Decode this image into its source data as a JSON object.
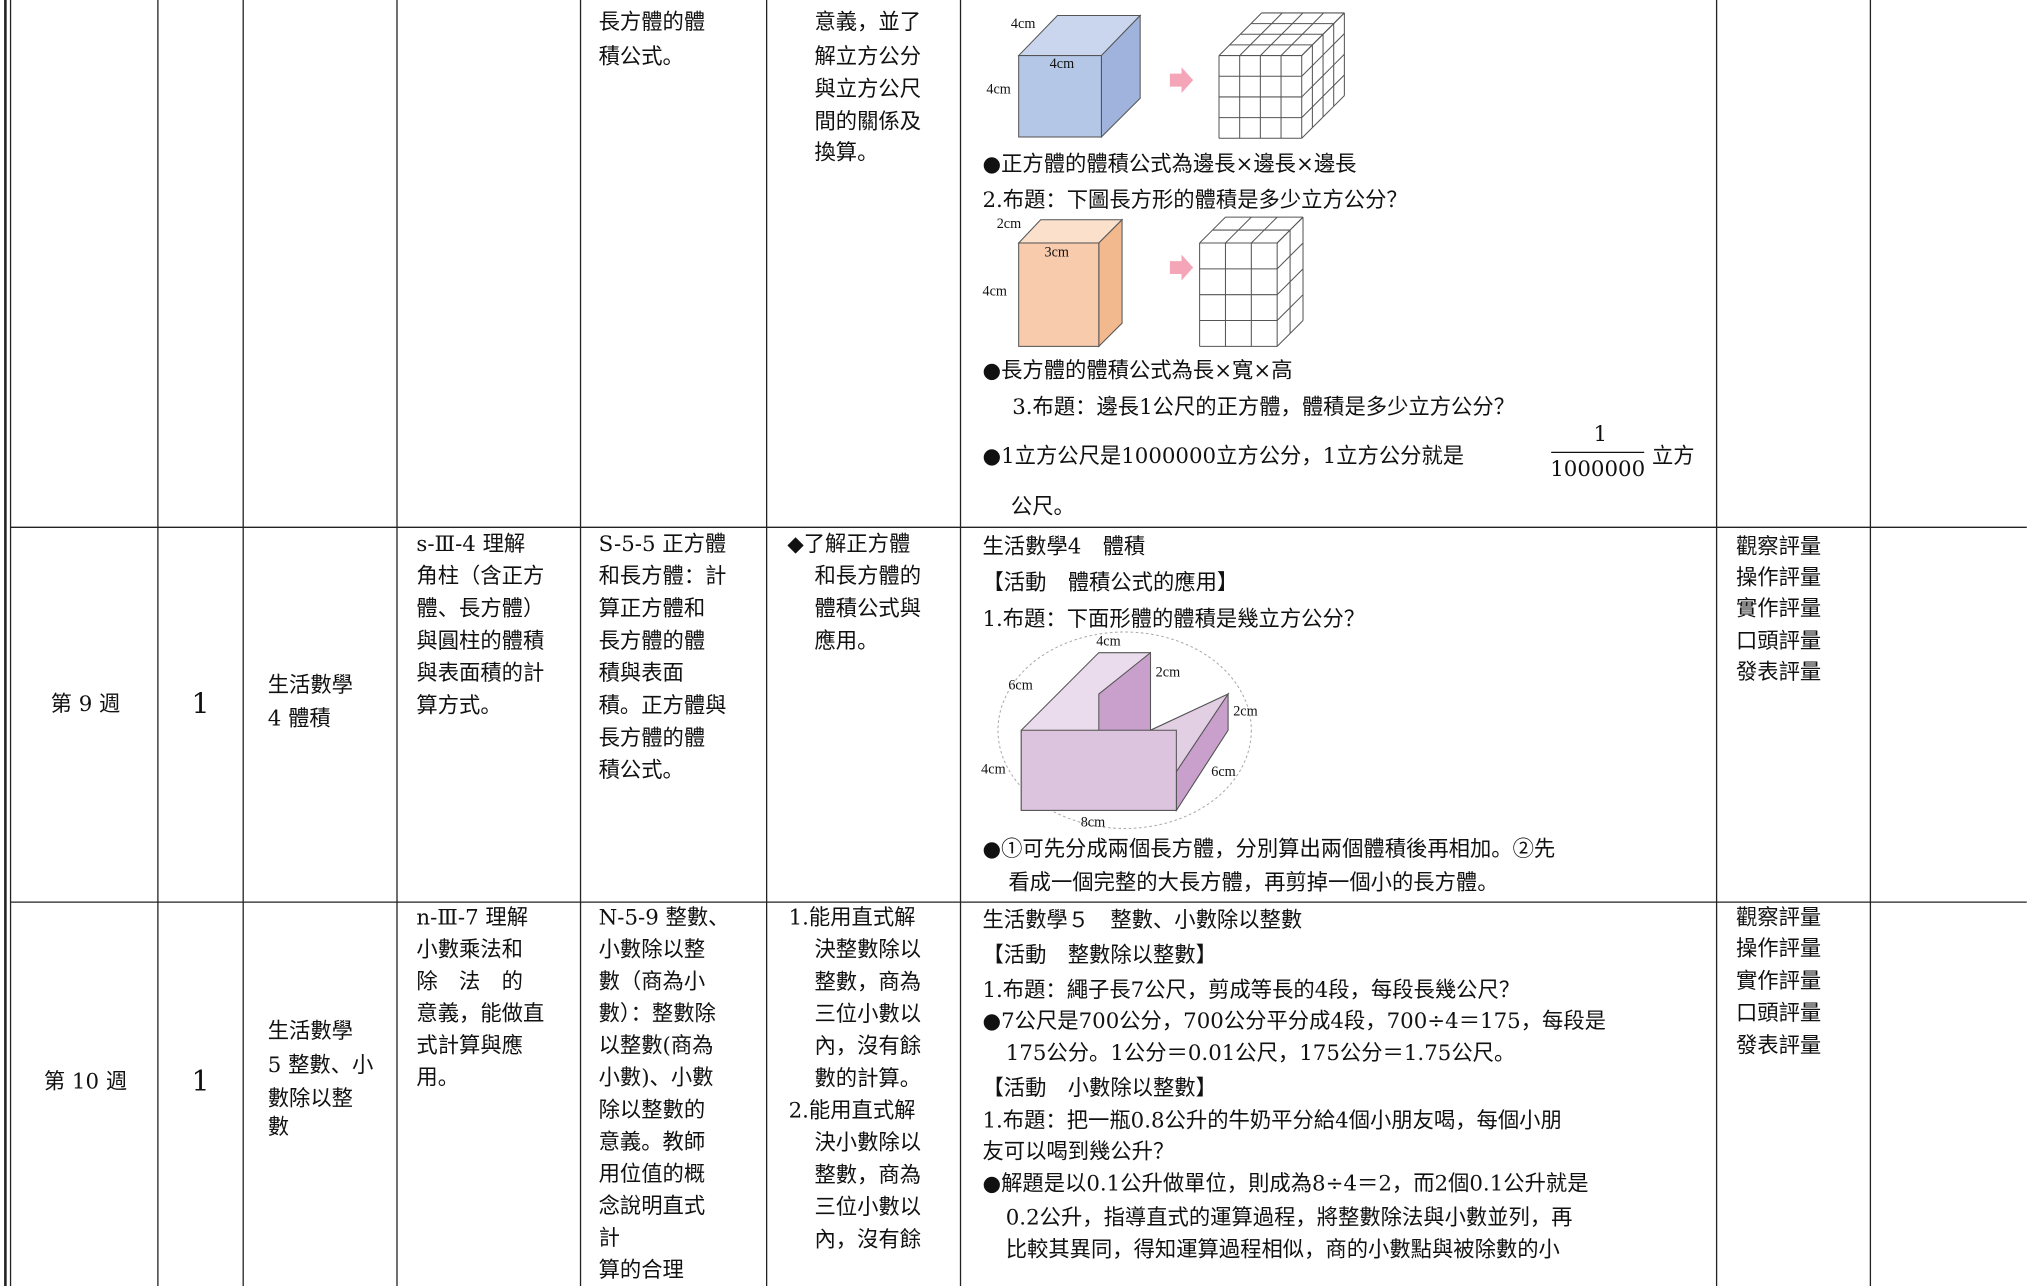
{
  "rows": [
    {
      "content": [
        "長方體的體",
        "積公式。"
      ],
      "goals": [
        "意義，並了",
        "解立方公分",
        "與立方公尺",
        "間的關係及",
        "換算。"
      ],
      "activities": {
        "figure_1": [
          "4cm",
          "4cm",
          "4cm"
        ],
        "figure_2": [
          "2cm",
          "3cm",
          "4cm"
        ],
        "lines": [
          "●正方體的體積公式為邊長×邊長×邊長",
          "2.布題：下圖長方形的體積是多少立方公分？",
          "●長方體的體積公式為長×寬×高",
          "3.布題：邊長1公尺的正方體，體積是多少立方公分？",
          "公尺。"
        ],
        "fraction": {
          "before": "●1立方公尺是1000000立方公分，1立方公分就是",
          "numerator": "1",
          "denominator": "1000000",
          "after": "立方"
        }
      }
    },
    {
      "week": "第 9 週",
      "periods": "1",
      "unit": [
        "生活數學",
        "4 體積"
      ],
      "performance": [
        "s-Ⅲ-4 理解",
        "角柱（含正方",
        "體、長方體）",
        "與圓柱的體積",
        "與表面積的計",
        "算方式。"
      ],
      "content": [
        "S-5-5 正方體",
        "和長方體：計",
        "算正方體和",
        "長方體的體",
        "積與表面",
        "積。正方體與",
        "長方體的體",
        "積公式。"
      ],
      "goals": [
        "◆了解正方體",
        "和長方體的",
        "體積公式與",
        "應用。"
      ],
      "activities": {
        "lines": [
          "生活數學4　體積",
          "【活動　體積公式的應用】",
          "1.布題：下面形體的體積是幾立方公分？",
          "●①可先分成兩個長方體，分別算出兩個體積後再相加。②先",
          "看成一個完整的大長方體，再剪掉一個小的長方體。"
        ],
        "figure": [
          "4cm",
          "2cm",
          "6cm",
          "2cm",
          "4cm",
          "6cm",
          "8cm"
        ]
      },
      "assessment": [
        "觀察評量",
        "操作評量",
        "實作評量",
        "口頭評量",
        "發表評量"
      ]
    },
    {
      "week": "第 10 週",
      "periods": "1",
      "unit": [
        "生活數學",
        "5 整數、小",
        "數除以整",
        "數"
      ],
      "performance": [
        "n-Ⅲ-7 理解",
        "小數乘法和",
        "除　法　的",
        "意義，能做直",
        "式計算與應",
        "用。"
      ],
      "content": [
        "N-5-9 整數、",
        "小數除以整",
        "數（商為小",
        "數）：整數除",
        "以整數(商為",
        "小數)、小數",
        "除以整數的",
        "意義。教師",
        "用位值的概",
        "念說明直式",
        "計",
        "算的合理"
      ],
      "goals": [
        "1.能用直式解",
        "決整數除以",
        "整數，商為",
        "三位小數以",
        "內，沒有餘",
        "數的計算。",
        "2.能用直式解",
        "決小數除以",
        "整數，商為",
        "三位小數以",
        "內，沒有餘"
      ],
      "activities": {
        "lines": [
          "生活數學５　整數、小數除以整數",
          "【活動　整數除以整數】",
          "1.布題：繩子長7公尺，剪成等長的4段，每段長幾公尺？",
          "●7公尺是700公分，700公分平分成4段，700÷4＝175，每段是",
          "175公分。1公分＝0.01公尺，175公分＝1.75公尺。",
          "【活動　小數除以整數】",
          "1.布題：把一瓶0.8公升的牛奶平分給4個小朋友喝，每個小朋",
          "友可以喝到幾公升？",
          "●解題是以0.1公升做單位，則成為8÷4＝2，而2個0.1公升就是",
          "0.2公升，指導直式的運算過程，將整數除法與小數並列，再",
          "比較其異同，得知運算過程相似，商的小數點與被除數的小"
        ]
      },
      "assessment": [
        "觀察評量",
        "操作評量",
        "實作評量",
        "口頭評量",
        "發表評量"
      ]
    }
  ]
}
